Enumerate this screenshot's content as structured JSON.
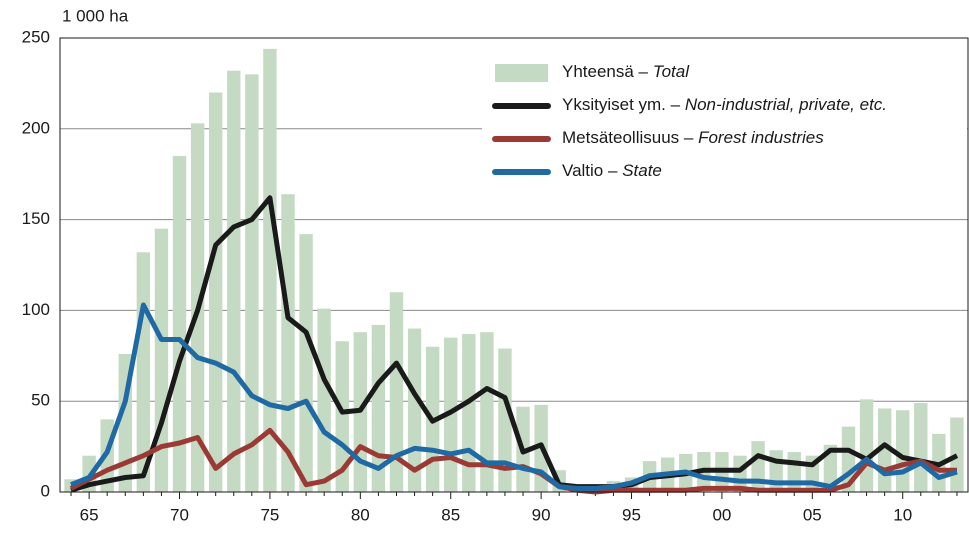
{
  "chart_data": {
    "type": "bar_line",
    "y_axis_label": "1 000 ha",
    "categories": [
      null,
      "65",
      null,
      null,
      null,
      null,
      "70",
      null,
      null,
      null,
      null,
      "75",
      null,
      null,
      null,
      null,
      "80",
      null,
      null,
      null,
      null,
      "85",
      null,
      null,
      null,
      null,
      "90",
      null,
      null,
      null,
      null,
      "95",
      null,
      null,
      null,
      null,
      "00",
      null,
      null,
      null,
      null,
      "05",
      null,
      null,
      null,
      null,
      "10",
      null,
      null,
      null
    ],
    "ylim": [
      0,
      250
    ],
    "yticks": [
      0,
      50,
      100,
      150,
      200,
      250
    ],
    "grid": true,
    "series": [
      {
        "name": "Yhteensä –",
        "name_en": "Total",
        "kind": "bar",
        "color": "#c4dac2",
        "values": [
          7,
          20,
          40,
          76,
          132,
          145,
          185,
          203,
          220,
          232,
          230,
          244,
          164,
          142,
          101,
          83,
          88,
          92,
          110,
          90,
          80,
          85,
          87,
          88,
          79,
          47,
          48,
          12,
          4,
          4,
          6,
          8,
          17,
          19,
          21,
          22,
          22,
          20,
          28,
          23,
          22,
          20,
          26,
          36,
          51,
          46,
          45,
          49,
          32,
          41
        ]
      },
      {
        "name": "Yksityiset ym. –",
        "name_en": "Non-industrial, private, etc.",
        "kind": "line",
        "color": "#1a1a1a",
        "values": [
          1,
          4,
          6,
          8,
          9,
          38,
          72,
          100,
          136,
          146,
          150,
          162,
          96,
          88,
          62,
          44,
          45,
          60,
          71,
          54,
          39,
          44,
          50,
          57,
          52,
          22,
          26,
          4,
          3,
          3,
          3,
          4,
          8,
          9,
          10,
          12,
          12,
          12,
          20,
          17,
          16,
          15,
          23,
          23,
          18,
          26,
          19,
          17,
          15,
          20
        ]
      },
      {
        "name": "Metsäteollisuus –",
        "name_en": "Forest industries",
        "kind": "line",
        "color": "#9b3a34",
        "values": [
          2,
          7,
          12,
          16,
          20,
          25,
          27,
          30,
          13,
          21,
          26,
          34,
          22,
          4,
          6,
          12,
          25,
          20,
          19,
          12,
          18,
          19,
          15,
          15,
          13,
          14,
          10,
          3,
          1,
          0,
          1,
          1,
          1,
          1,
          1,
          2,
          2,
          2,
          1,
          1,
          1,
          1,
          1,
          4,
          16,
          12,
          15,
          17,
          12,
          12
        ]
      },
      {
        "name": "Valtio –",
        "name_en": "State",
        "kind": "line",
        "color": "#1f6aa5",
        "values": [
          4,
          8,
          22,
          50,
          103,
          84,
          84,
          74,
          71,
          66,
          53,
          48,
          46,
          50,
          33,
          26,
          17,
          13,
          20,
          24,
          23,
          21,
          23,
          16,
          16,
          13,
          11,
          3,
          2,
          2,
          3,
          5,
          9,
          10,
          11,
          8,
          7,
          6,
          6,
          5,
          5,
          5,
          3,
          10,
          18,
          10,
          11,
          16,
          8,
          11
        ]
      }
    ]
  }
}
